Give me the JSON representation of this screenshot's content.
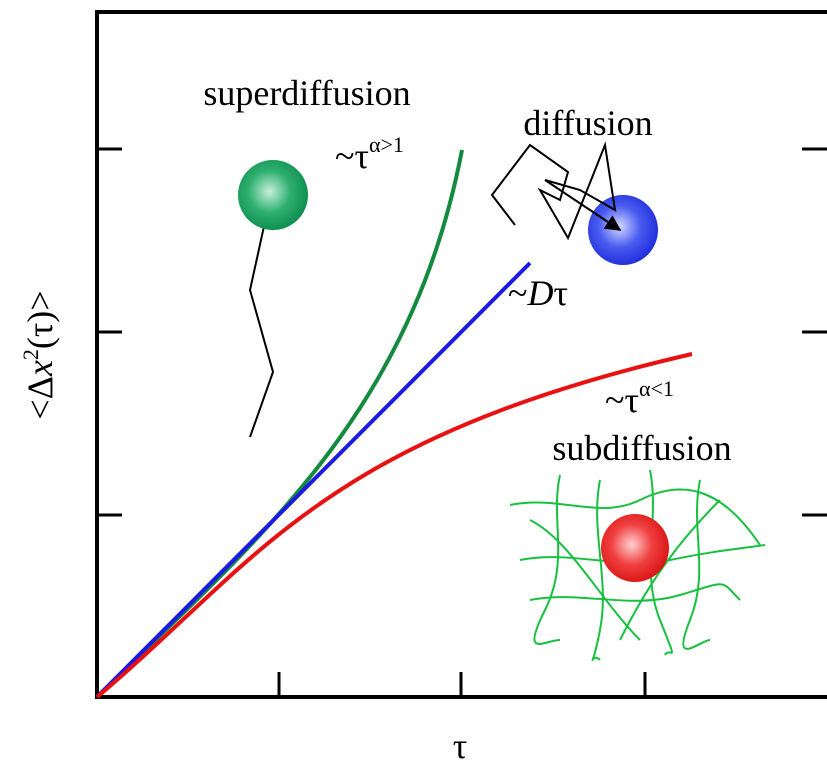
{
  "axes": {
    "y_label": {
      "open": "<Δ",
      "var": "x",
      "sup": "2",
      "close": "(τ)>"
    },
    "x_label": "τ"
  },
  "labels": {
    "superdiffusion": "superdiffusion",
    "super_law": {
      "text": "~τ",
      "sup": "α>1"
    },
    "diffusion": "diffusion",
    "diffusion_law": {
      "text": "~",
      "var": "D",
      "tail": "τ"
    },
    "sub_law": {
      "text": "~τ",
      "sup": "α<1"
    },
    "subdiffusion": "subdiffusion"
  }
}
